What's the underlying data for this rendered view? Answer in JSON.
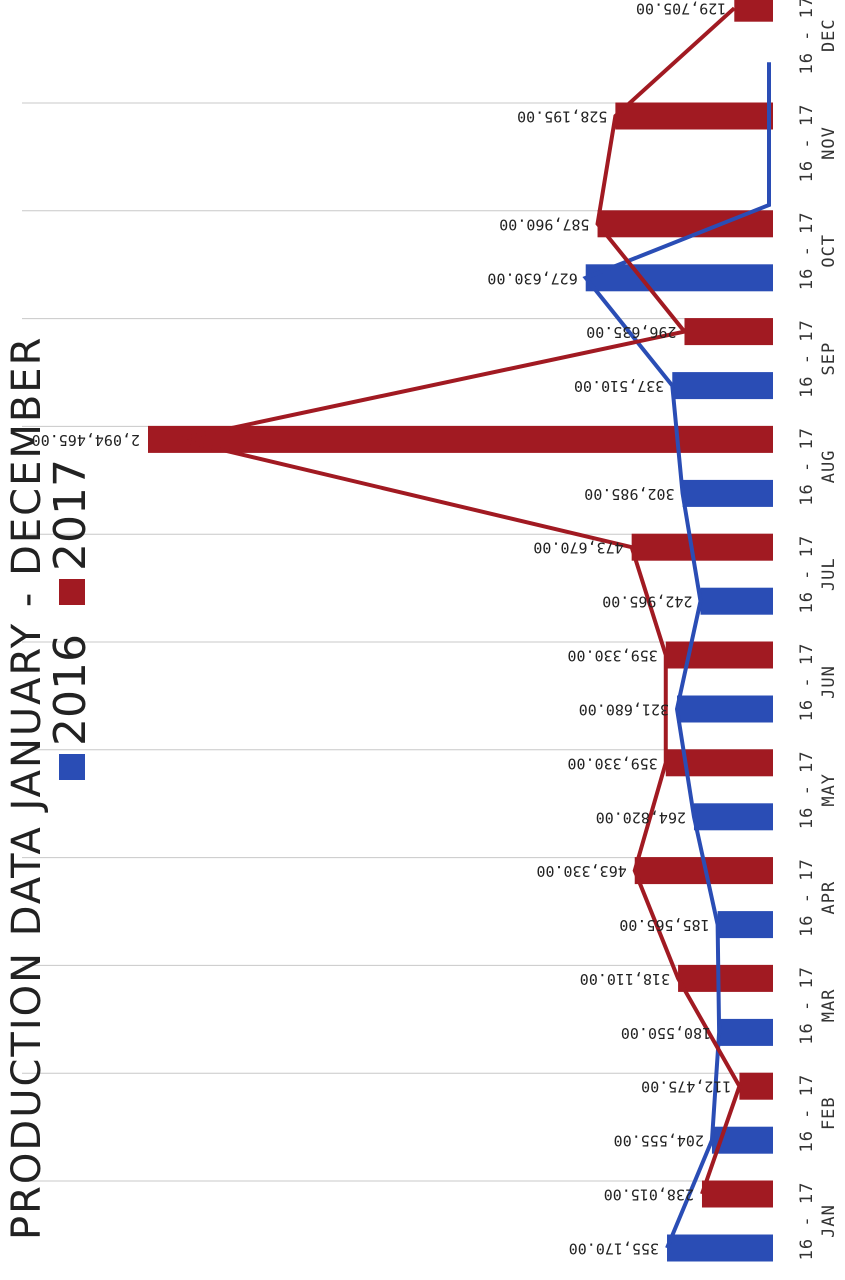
{
  "page": {
    "title": "PRODUCTION DATA JANUARY - DECEMBER"
  },
  "colors": {
    "series_2016": "#2a4db5",
    "series_2017": "#a11a22",
    "grid": "#c8c8c8",
    "text": "#222222"
  },
  "chart_data": {
    "type": "bar",
    "orientation": "horizontal",
    "title": "PRODUCTION DATA JANUARY - DECEMBER",
    "categories": [
      "JAN",
      "FEB",
      "MAR",
      "APR",
      "MAY",
      "JUN",
      "JUL",
      "AUG",
      "SEP",
      "OCT",
      "NOV",
      "DEC"
    ],
    "category_prefix": "16 - 17",
    "series": [
      {
        "name": "2016",
        "color": "#2a4db5",
        "values": [
          355170,
          204555,
          180550,
          185565,
          264820,
          321680,
          242965,
          302985,
          337510,
          627630,
          0,
          0
        ],
        "labels": [
          "355,170.00",
          "204,555.00",
          "180,550.00",
          "185,565.00",
          "264,820.00",
          "321,680.00",
          "242,965.00",
          "302,985.00",
          "337,510.00",
          "627,630.00",
          "",
          ""
        ]
      },
      {
        "name": "2017",
        "color": "#a11a22",
        "values": [
          238015,
          112475,
          318110,
          463330,
          359330,
          359330,
          473670,
          2094465,
          296635,
          587960,
          528195,
          129705
        ],
        "labels": [
          "238,015.00",
          "112,475.00",
          "318,110.00",
          "463,330.00",
          "359,330.00",
          "359,330.00",
          "473,670.00",
          "2,094,465.00",
          "296,635.00",
          "587,960.00",
          "528,195.00",
          "129,705.00"
        ]
      }
    ],
    "overlay_lines": true,
    "grid": true,
    "legend_position": "top-left",
    "value_max": 2100000
  }
}
